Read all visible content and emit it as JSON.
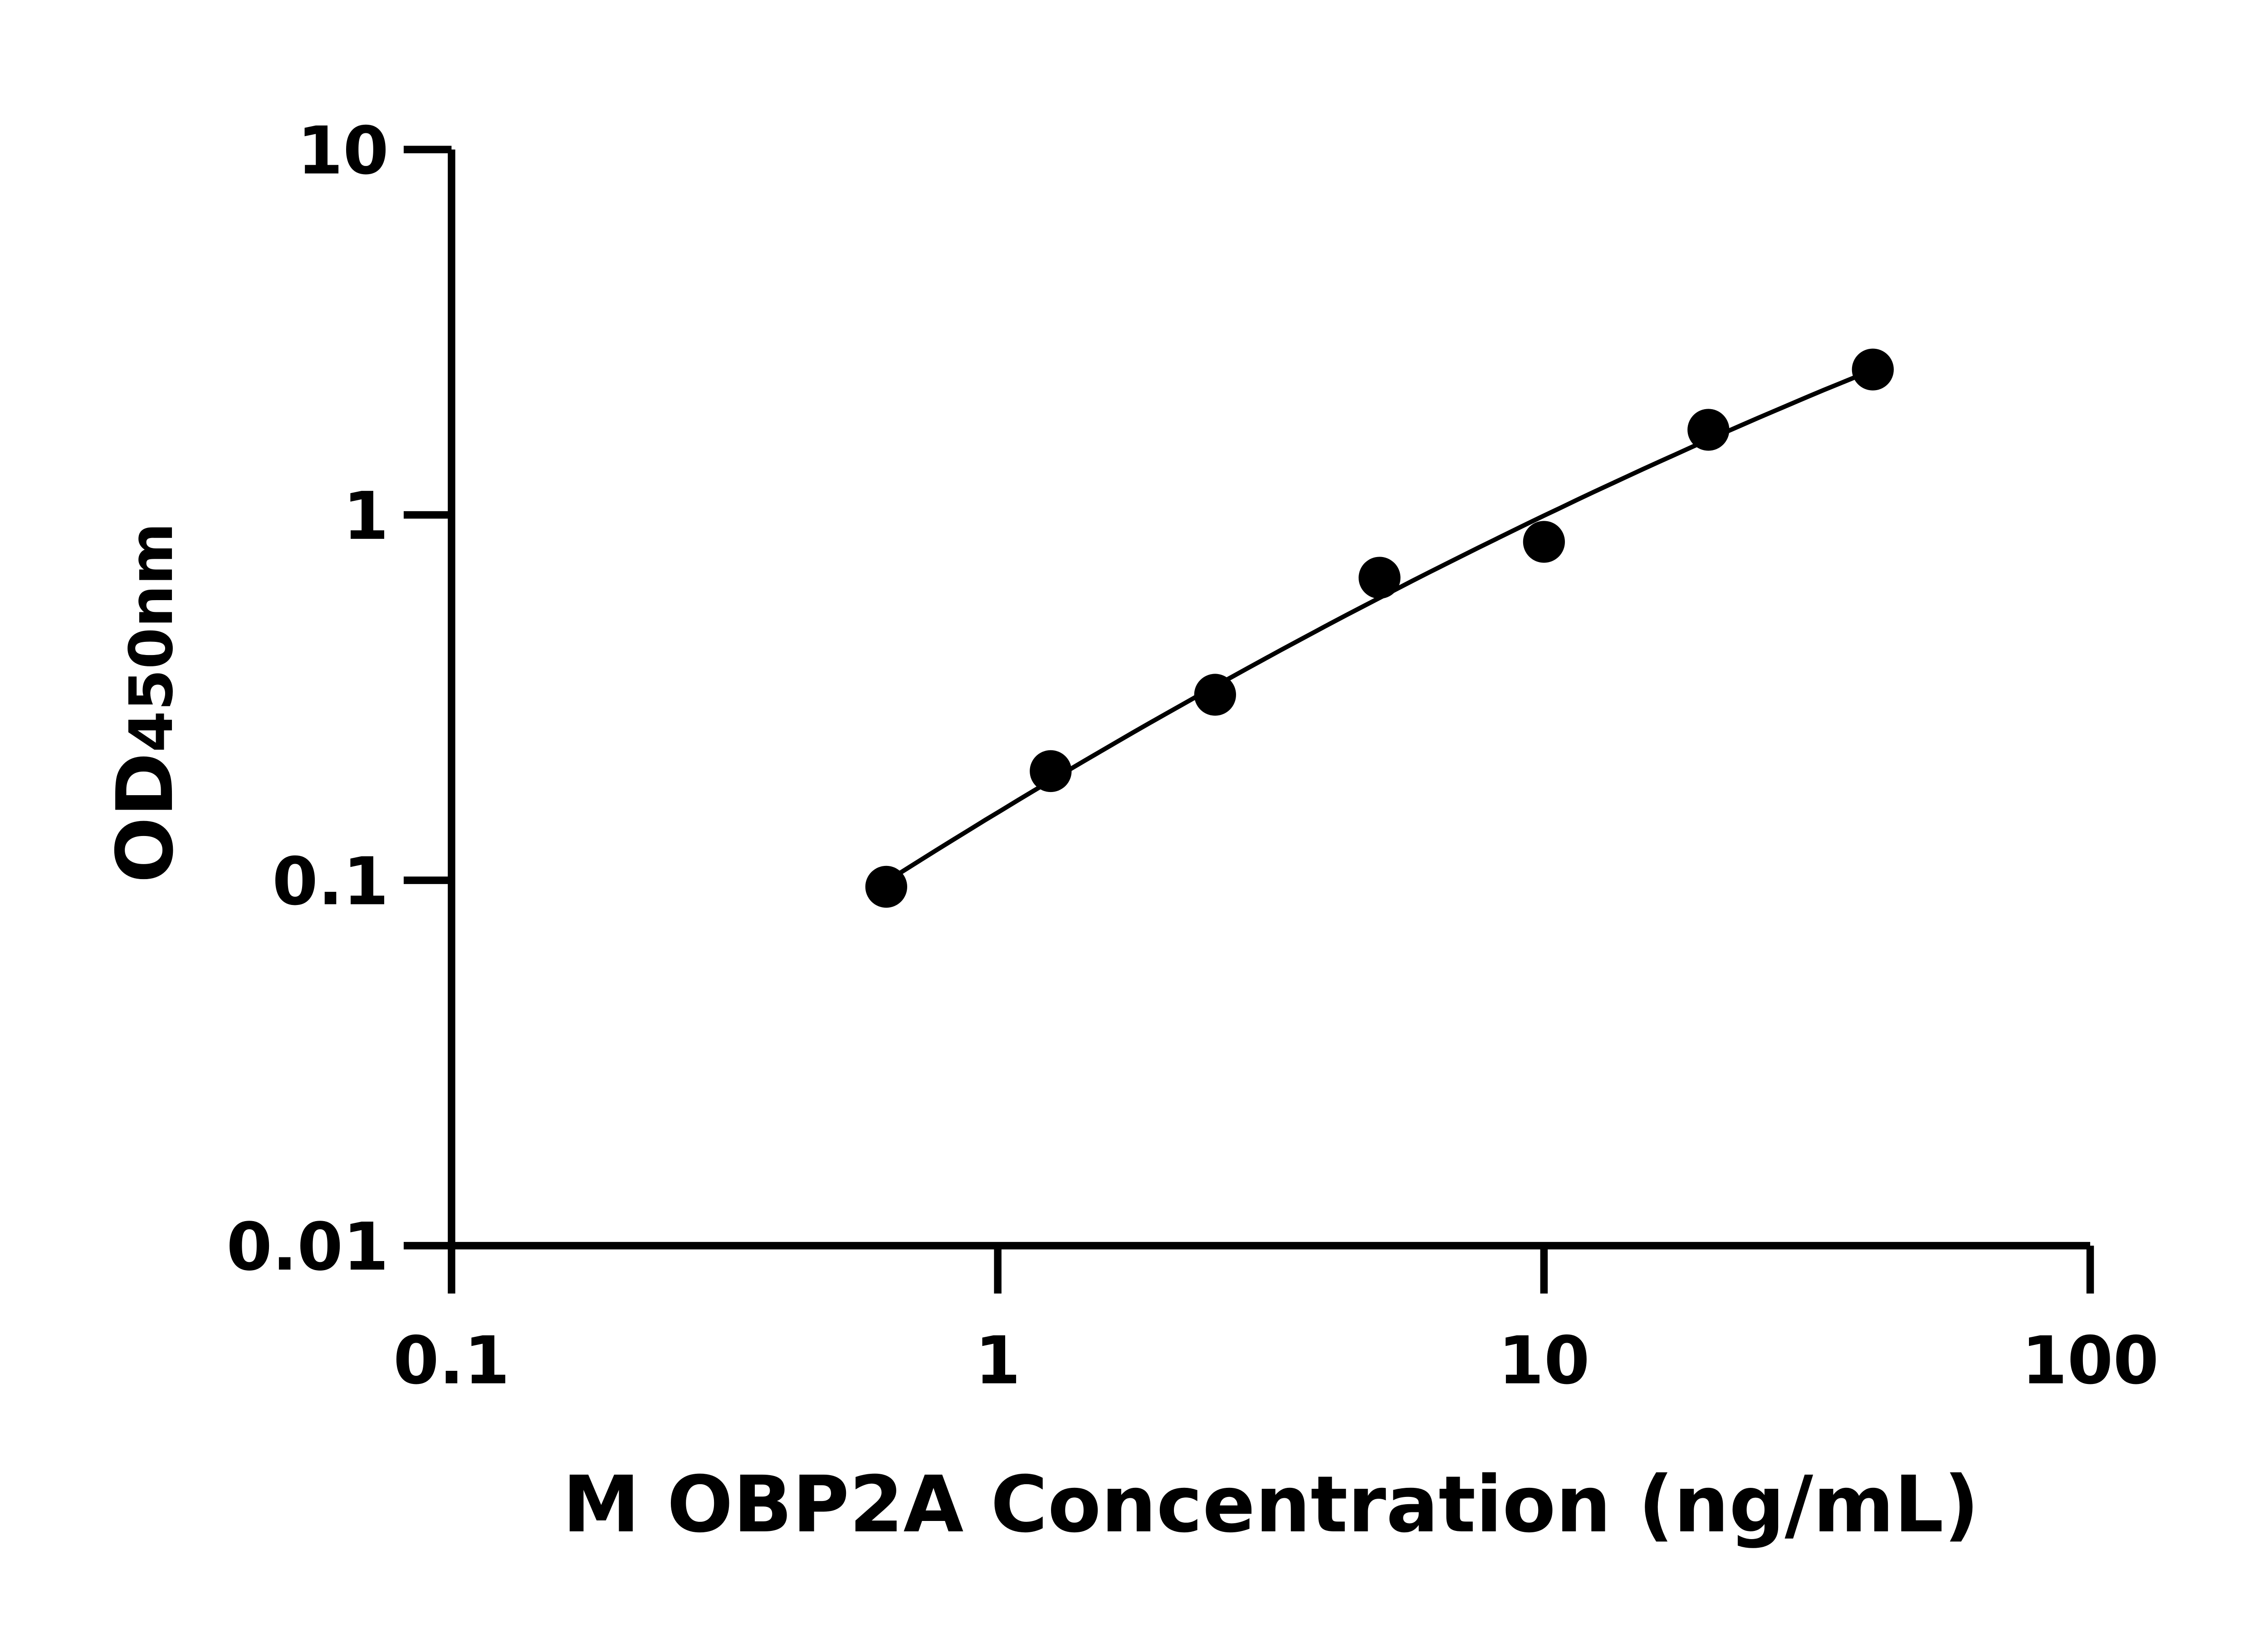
{
  "chart_data": {
    "type": "scatter",
    "title": "",
    "xlabel": "M OBP2A Concentration (ng/mL)",
    "ylabel": {
      "main": "OD",
      "sub": "450",
      "unit": "nm"
    },
    "x_scale": "log",
    "y_scale": "log",
    "xlim": [
      0.1,
      100
    ],
    "ylim": [
      0.01,
      10
    ],
    "x_ticks": [
      "0.1",
      "1",
      "10",
      "100"
    ],
    "y_ticks": [
      "0.01",
      "0.1",
      "1",
      "10"
    ],
    "grid": false,
    "legend": "none",
    "fit_line": true,
    "marker_color": "#000000",
    "series": [
      {
        "x": [
          0.625,
          1.25,
          2.5,
          5,
          10,
          20,
          40
        ],
        "y": [
          0.096,
          0.199,
          0.322,
          0.673,
          0.844,
          1.71,
          2.5
        ]
      }
    ]
  }
}
